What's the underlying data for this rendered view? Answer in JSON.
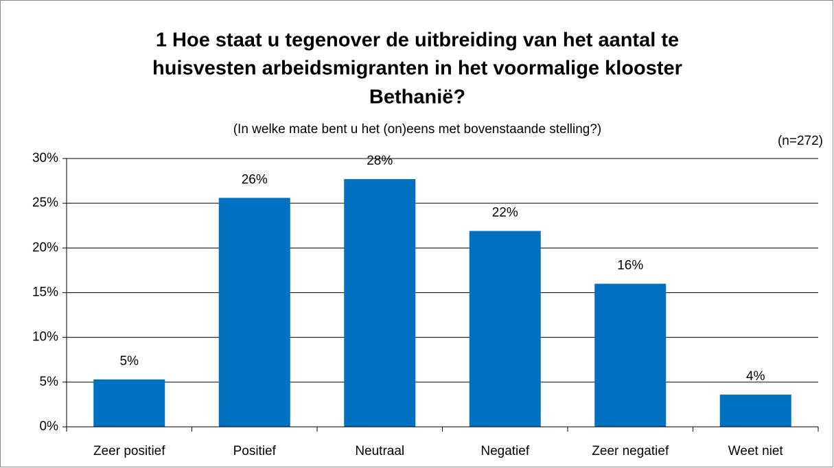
{
  "chart_data": {
    "type": "bar",
    "title": [
      "1 Hoe staat u tegenover de uitbreiding van het aantal te",
      "huisvesten arbeidsmigranten in het voormalige klooster",
      "Bethanië?"
    ],
    "subtitle": "(In welke mate bent u het (on)eens met bovenstaande stelling?)",
    "annotation": "(n=272)",
    "categories": [
      "Zeer positief",
      "Positief",
      "Neutraal",
      "Negatief",
      "Zeer negatief",
      "Weet niet"
    ],
    "values": [
      5.3,
      25.6,
      27.7,
      21.9,
      16.0,
      3.6
    ],
    "value_labels": [
      "5%",
      "26%",
      "28%",
      "22%",
      "16%",
      "4%"
    ],
    "color": "#0070c0",
    "ylim": [
      0,
      30
    ],
    "yticks": [
      {
        "value": 0,
        "label": "0%"
      },
      {
        "value": 5,
        "label": "5%"
      },
      {
        "value": 10,
        "label": "10%"
      },
      {
        "value": 15,
        "label": "15%"
      },
      {
        "value": 20,
        "label": "20%"
      },
      {
        "value": 25,
        "label": "25%"
      },
      {
        "value": 30,
        "label": "30%"
      }
    ],
    "grid": true
  }
}
